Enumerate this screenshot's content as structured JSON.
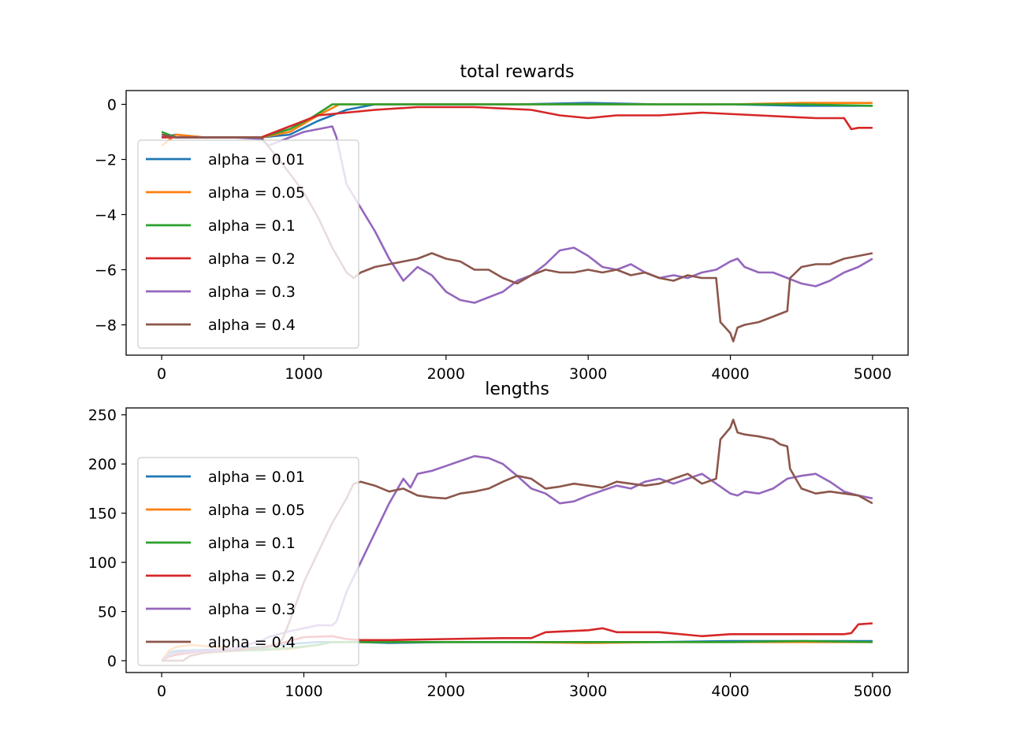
{
  "chart_data": [
    {
      "type": "line",
      "title": "total rewards",
      "xlabel": "",
      "ylabel": "",
      "xlim": [
        -250,
        5250
      ],
      "ylim": [
        -9.1,
        0.5
      ],
      "xticks": [
        0,
        1000,
        2000,
        3000,
        4000,
        5000
      ],
      "yticks": [
        0,
        -2,
        -4,
        -6,
        -8
      ],
      "grid": false,
      "legend_position": "upper-left",
      "series": [
        {
          "name": "alpha = 0.01",
          "color": "#1f77b4",
          "x": [
            0,
            100,
            300,
            500,
            700,
            900,
            1100,
            1300,
            1500,
            1700,
            2000,
            2500,
            3000,
            3500,
            4000,
            4500,
            5000
          ],
          "y": [
            -1.2,
            -1.1,
            -1.2,
            -1.2,
            -1.2,
            -1.1,
            -0.6,
            -0.2,
            0,
            0,
            0,
            0,
            0.05,
            0,
            0,
            -0.05,
            -0.05
          ]
        },
        {
          "name": "alpha = 0.05",
          "color": "#ff7f0e",
          "x": [
            0,
            100,
            300,
            500,
            700,
            900,
            1100,
            1250,
            1500,
            1800,
            2200,
            2600,
            3000,
            3500,
            4000,
            4500,
            5000
          ],
          "y": [
            -1.5,
            -1.1,
            -1.2,
            -1.2,
            -1.2,
            -1.0,
            -0.4,
            0,
            0,
            0,
            0,
            0,
            0,
            0,
            0,
            0.05,
            0.05
          ]
        },
        {
          "name": "alpha = 0.1",
          "color": "#2ca02c",
          "x": [
            0,
            100,
            300,
            500,
            700,
            900,
            1050,
            1200,
            1250,
            1500,
            2000,
            2500,
            3000,
            3500,
            4000,
            4500,
            5000
          ],
          "y": [
            -1.0,
            -1.2,
            -1.2,
            -1.2,
            -1.2,
            -0.9,
            -0.5,
            0,
            0,
            0,
            0,
            0,
            0,
            0,
            0,
            0,
            -0.05
          ]
        },
        {
          "name": "alpha = 0.2",
          "color": "#d62728",
          "x": [
            0,
            100,
            300,
            500,
            700,
            900,
            1100,
            1300,
            1500,
            1800,
            2200,
            2600,
            2800,
            3000,
            3200,
            3500,
            3800,
            4200,
            4600,
            4800,
            4850,
            4900,
            5000
          ],
          "y": [
            -1.2,
            -1.2,
            -1.2,
            -1.2,
            -1.2,
            -0.8,
            -0.4,
            -0.3,
            -0.2,
            -0.1,
            -0.1,
            -0.2,
            -0.4,
            -0.5,
            -0.4,
            -0.4,
            -0.3,
            -0.4,
            -0.5,
            -0.5,
            -0.9,
            -0.85,
            -0.85
          ]
        },
        {
          "name": "alpha = 0.3",
          "color": "#9467bd",
          "x": [
            0,
            100,
            300,
            500,
            700,
            750,
            900,
            1000,
            1100,
            1200,
            1230,
            1300,
            1500,
            1600,
            1700,
            1800,
            1900,
            2000,
            2100,
            2200,
            2300,
            2400,
            2500,
            2600,
            2700,
            2800,
            2900,
            3000,
            3100,
            3200,
            3300,
            3400,
            3500,
            3600,
            3700,
            3800,
            3900,
            4000,
            4050,
            4100,
            4200,
            4300,
            4400,
            4500,
            4600,
            4700,
            4800,
            4900,
            5000
          ],
          "y": [
            -1.1,
            -1.2,
            -1.2,
            -1.2,
            -1.25,
            -1.5,
            -1.2,
            -1.0,
            -0.9,
            -0.8,
            -1.2,
            -2.9,
            -4.6,
            -5.6,
            -6.4,
            -5.9,
            -6.2,
            -6.8,
            -7.1,
            -7.2,
            -7.0,
            -6.8,
            -6.4,
            -6.2,
            -5.8,
            -5.3,
            -5.2,
            -5.5,
            -5.9,
            -6.0,
            -5.8,
            -6.1,
            -6.3,
            -6.2,
            -6.3,
            -6.1,
            -6.0,
            -5.7,
            -5.6,
            -5.9,
            -6.1,
            -6.1,
            -6.3,
            -6.5,
            -6.6,
            -6.4,
            -6.1,
            -5.9,
            -5.6
          ]
        },
        {
          "name": "alpha = 0.4",
          "color": "#8c564b",
          "x": [
            0,
            100,
            300,
            500,
            700,
            900,
            1000,
            1100,
            1200,
            1300,
            1350,
            1400,
            1500,
            1600,
            1700,
            1800,
            1900,
            2000,
            2100,
            2200,
            2300,
            2400,
            2500,
            2600,
            2700,
            2800,
            2900,
            3000,
            3100,
            3200,
            3300,
            3400,
            3500,
            3600,
            3700,
            3800,
            3900,
            3930,
            4000,
            4020,
            4050,
            4100,
            4200,
            4300,
            4350,
            4400,
            4420,
            4500,
            4600,
            4700,
            4800,
            4900,
            5000
          ],
          "y": [
            -1.1,
            -1.2,
            -1.2,
            -1.2,
            -1.2,
            -2.5,
            -3.2,
            -4.1,
            -5.2,
            -6.1,
            -6.3,
            -6.1,
            -5.9,
            -5.8,
            -5.7,
            -5.6,
            -5.4,
            -5.6,
            -5.7,
            -6.0,
            -6.0,
            -6.3,
            -6.5,
            -6.2,
            -6.0,
            -6.1,
            -6.1,
            -6.0,
            -6.1,
            -6.0,
            -6.2,
            -6.1,
            -6.3,
            -6.4,
            -6.2,
            -6.3,
            -6.3,
            -7.9,
            -8.3,
            -8.6,
            -8.1,
            -8.0,
            -7.9,
            -7.7,
            -7.6,
            -7.5,
            -6.3,
            -5.9,
            -5.8,
            -5.8,
            -5.6,
            -5.5,
            -5.4
          ]
        }
      ]
    },
    {
      "type": "line",
      "title": "lengths",
      "xlabel": "",
      "ylabel": "",
      "xlim": [
        -250,
        5250
      ],
      "ylim": [
        -12,
        257
      ],
      "xticks": [
        0,
        1000,
        2000,
        3000,
        4000,
        5000
      ],
      "yticks": [
        0,
        50,
        100,
        150,
        200,
        250
      ],
      "grid": false,
      "legend_position": "upper-left",
      "series": [
        {
          "name": "alpha = 0.01",
          "color": "#1f77b4",
          "x": [
            0,
            50,
            100,
            300,
            500,
            700,
            900,
            1100,
            1200,
            1400,
            1600,
            2000,
            2500,
            3000,
            3500,
            4000,
            4500,
            5000
          ],
          "y": [
            0,
            8,
            10,
            11,
            12,
            14,
            17,
            19,
            19,
            19,
            18,
            19,
            19,
            19,
            19,
            20,
            20,
            20
          ]
        },
        {
          "name": "alpha = 0.05",
          "color": "#ff7f0e",
          "x": [
            0,
            50,
            100,
            200,
            300,
            500,
            700,
            900,
            1100,
            1200,
            1400,
            1600,
            2000,
            2500,
            3000,
            3500,
            4000,
            4500,
            5000
          ],
          "y": [
            0,
            10,
            14,
            16,
            15,
            12,
            11,
            12,
            16,
            19,
            19,
            19,
            19,
            19,
            18,
            19,
            19,
            19,
            19
          ]
        },
        {
          "name": "alpha = 0.1",
          "color": "#2ca02c",
          "x": [
            0,
            50,
            100,
            300,
            500,
            700,
            900,
            1100,
            1200,
            1400,
            1600,
            2000,
            2500,
            3000,
            3500,
            4000,
            4500,
            5000
          ],
          "y": [
            0,
            5,
            8,
            10,
            10,
            11,
            13,
            16,
            19,
            19,
            19,
            19,
            19,
            19,
            19,
            19,
            20,
            19
          ]
        },
        {
          "name": "alpha = 0.2",
          "color": "#d62728",
          "x": [
            0,
            50,
            100,
            200,
            300,
            500,
            700,
            900,
            1000,
            1200,
            1300,
            1400,
            1600,
            2000,
            2400,
            2600,
            2700,
            3000,
            3100,
            3200,
            3500,
            3800,
            4000,
            4400,
            4800,
            4850,
            4900,
            5000
          ],
          "y": [
            0,
            4,
            6,
            8,
            10,
            11,
            13,
            20,
            24,
            25,
            22,
            21,
            21,
            22,
            23,
            23,
            29,
            31,
            33,
            29,
            29,
            25,
            27,
            27,
            27,
            28,
            37,
            38
          ]
        },
        {
          "name": "alpha = 0.3",
          "color": "#9467bd",
          "x": [
            0,
            50,
            100,
            300,
            500,
            700,
            750,
            800,
            900,
            1000,
            1100,
            1200,
            1230,
            1300,
            1400,
            1500,
            1600,
            1700,
            1750,
            1800,
            1900,
            2000,
            2100,
            2200,
            2300,
            2400,
            2500,
            2600,
            2700,
            2800,
            2900,
            3000,
            3100,
            3200,
            3300,
            3400,
            3500,
            3600,
            3700,
            3800,
            3900,
            4000,
            4050,
            4100,
            4200,
            4300,
            4400,
            4500,
            4600,
            4700,
            4800,
            4900,
            5000
          ],
          "y": [
            0,
            5,
            8,
            10,
            12,
            20,
            24,
            26,
            30,
            33,
            36,
            36,
            40,
            70,
            100,
            130,
            160,
            185,
            176,
            190,
            193,
            198,
            203,
            208,
            206,
            200,
            188,
            175,
            170,
            160,
            162,
            168,
            173,
            178,
            175,
            182,
            185,
            180,
            185,
            190,
            180,
            170,
            168,
            172,
            170,
            175,
            185,
            188,
            190,
            182,
            172,
            168,
            165
          ]
        },
        {
          "name": "alpha = 0.4",
          "color": "#8c564b",
          "x": [
            0,
            100,
            150,
            200,
            300,
            500,
            700,
            800,
            850,
            900,
            1000,
            1100,
            1200,
            1300,
            1350,
            1400,
            1500,
            1600,
            1700,
            1800,
            1900,
            2000,
            2100,
            2200,
            2300,
            2400,
            2500,
            2600,
            2700,
            2800,
            2900,
            3000,
            3100,
            3200,
            3300,
            3400,
            3500,
            3600,
            3700,
            3800,
            3900,
            3930,
            4000,
            4020,
            4050,
            4100,
            4200,
            4300,
            4350,
            4400,
            4420,
            4500,
            4600,
            4700,
            4800,
            4900,
            5000
          ],
          "y": [
            0,
            0,
            0,
            5,
            8,
            10,
            13,
            15,
            22,
            40,
            80,
            110,
            140,
            165,
            180,
            182,
            178,
            172,
            175,
            168,
            166,
            165,
            170,
            172,
            175,
            182,
            188,
            185,
            175,
            177,
            180,
            178,
            176,
            182,
            180,
            178,
            180,
            185,
            190,
            180,
            185,
            225,
            237,
            245,
            232,
            230,
            228,
            225,
            220,
            218,
            195,
            175,
            170,
            172,
            170,
            168,
            160
          ]
        }
      ]
    }
  ]
}
